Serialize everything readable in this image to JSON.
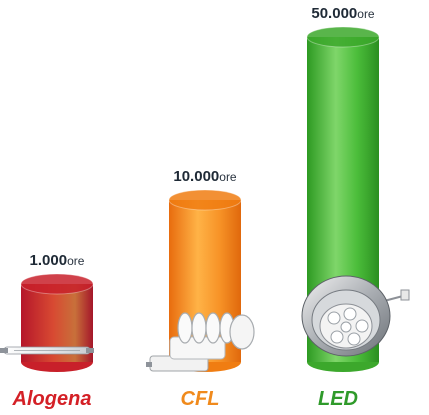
{
  "chart_data": {
    "type": "bar",
    "categories": [
      "Alogena",
      "CFL",
      "LED"
    ],
    "series": [
      {
        "values": [
          1000,
          10000,
          50000
        ]
      }
    ],
    "value_labels": [
      "1.000",
      "10.000",
      "50.000"
    ],
    "unit": "ore",
    "bar_colors": [
      "#c8202a",
      "#f07d12",
      "#3ca82c"
    ],
    "category_colors": [
      "#d42026",
      "#f08a1c",
      "#2f9a2a"
    ],
    "bulb_icons": [
      "halogen-tube-icon",
      "cfl-spiral-bulb-icon",
      "led-downlight-icon"
    ],
    "grid": false,
    "legend": "none"
  }
}
